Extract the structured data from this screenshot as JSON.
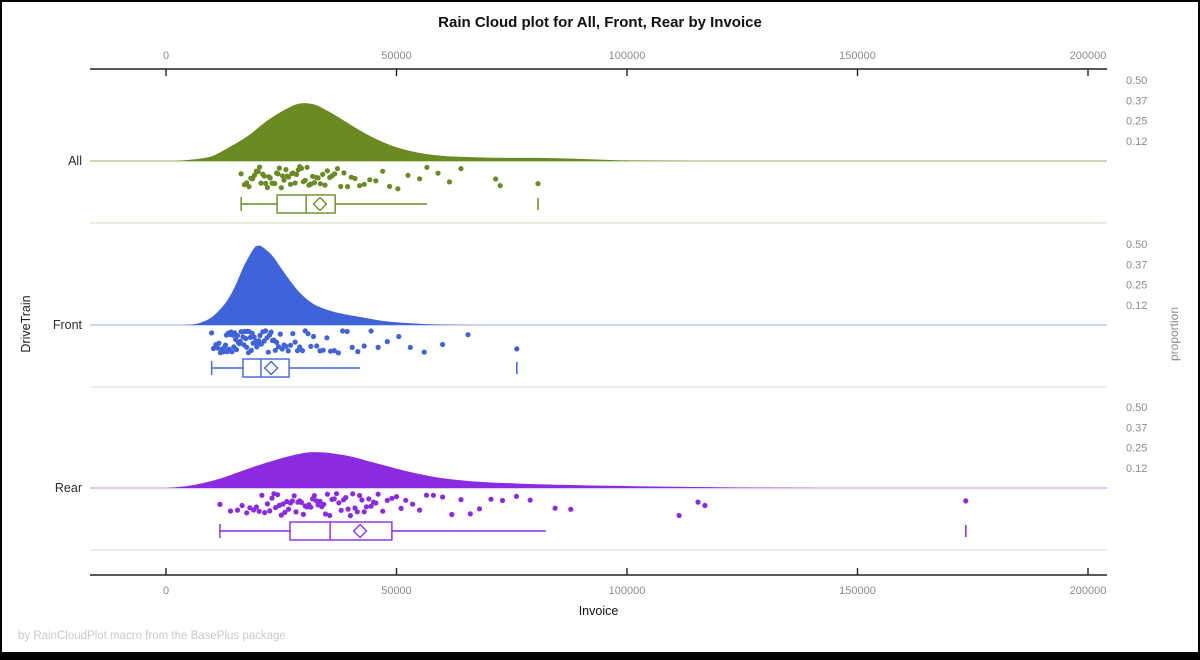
{
  "title": "Rain Cloud plot for All, Front, Rear by Invoice",
  "footer": "by RainCloudPlot macro from the BasePlus package",
  "chart_data": {
    "type": "raincloud",
    "title": "Rain Cloud plot for All, Front, Rear by Invoice",
    "xlabel": "Invoice",
    "ylabel": "DriveTrain",
    "right_axis_label": "proportion",
    "xlim": [
      -16500,
      204000
    ],
    "grid": "off",
    "x_axis": {
      "ticks": [
        {
          "value": 0,
          "label": "0"
        },
        {
          "value": 50000,
          "label": "50000"
        },
        {
          "value": 100000,
          "label": "100000"
        },
        {
          "value": 150000,
          "label": "150000"
        },
        {
          "value": 200000,
          "label": "200000"
        }
      ]
    },
    "right_axis": {
      "tick_labels": [
        "0.50",
        "0.37",
        "0.25",
        "0.12"
      ],
      "tick_values": [
        0.5,
        0.375,
        0.25,
        0.125
      ]
    },
    "groups": [
      {
        "name": "All",
        "color": "#6A8A23",
        "color_light": "#AFC285",
        "color_faint": "#DEE4CB",
        "density": [
          [
            2000,
            0
          ],
          [
            6000,
            0.01
          ],
          [
            10000,
            0.03
          ],
          [
            14000,
            0.09
          ],
          [
            18000,
            0.16
          ],
          [
            22000,
            0.25
          ],
          [
            26000,
            0.32
          ],
          [
            29000,
            0.355
          ],
          [
            32000,
            0.35
          ],
          [
            35000,
            0.31
          ],
          [
            38000,
            0.26
          ],
          [
            42000,
            0.19
          ],
          [
            46000,
            0.13
          ],
          [
            50000,
            0.085
          ],
          [
            55000,
            0.05
          ],
          [
            60000,
            0.032
          ],
          [
            66000,
            0.024
          ],
          [
            72000,
            0.02
          ],
          [
            80000,
            0.019
          ],
          [
            86000,
            0.016
          ],
          [
            92000,
            0.011
          ],
          [
            98000,
            0.005
          ],
          [
            106000,
            0.002
          ],
          [
            114000,
            0
          ]
        ],
        "points": [
          16300,
          17000,
          17500,
          18000,
          18400,
          18800,
          19200,
          19600,
          20000,
          20300,
          20600,
          21000,
          21300,
          21600,
          22000,
          22300,
          22600,
          23000,
          23300,
          23600,
          24000,
          24300,
          24600,
          25000,
          25300,
          25600,
          26000,
          26300,
          26600,
          27000,
          27300,
          27600,
          28000,
          28300,
          28700,
          29000,
          29400,
          29800,
          30200,
          30600,
          31000,
          31400,
          31800,
          32200,
          32600,
          33000,
          33500,
          34000,
          34500,
          35000,
          35500,
          36000,
          36600,
          37200,
          37900,
          38600,
          39400,
          40200,
          41000,
          42000,
          43000,
          44200,
          45500,
          47000,
          48500,
          50300,
          52500,
          55000,
          56600,
          59000,
          61500,
          64000,
          71500,
          72500,
          80700
        ],
        "box": {
          "whisker_low": 16300,
          "q1": 24100,
          "median": 30400,
          "mean": 33400,
          "q3": 36700,
          "whisker_high": 56600,
          "outliers": [
            80700
          ]
        }
      },
      {
        "name": "Front",
        "color": "#3F63D9",
        "color_light": "#AABDEC",
        "color_faint": "#DCE3F7",
        "density": [
          [
            4000,
            0
          ],
          [
            7000,
            0.01
          ],
          [
            10000,
            0.05
          ],
          [
            13000,
            0.14
          ],
          [
            15000,
            0.24
          ],
          [
            17000,
            0.37
          ],
          [
            19000,
            0.47
          ],
          [
            20000,
            0.49
          ],
          [
            21000,
            0.48
          ],
          [
            23000,
            0.43
          ],
          [
            25000,
            0.35
          ],
          [
            27000,
            0.27
          ],
          [
            29000,
            0.2
          ],
          [
            31000,
            0.15
          ],
          [
            33000,
            0.115
          ],
          [
            36000,
            0.085
          ],
          [
            39000,
            0.065
          ],
          [
            42000,
            0.05
          ],
          [
            45000,
            0.035
          ],
          [
            48000,
            0.022
          ],
          [
            52000,
            0.012
          ],
          [
            56000,
            0.006
          ],
          [
            61000,
            0.002
          ],
          [
            66000,
            0
          ]
        ],
        "points": [
          9900,
          10300,
          10800,
          11200,
          11500,
          11800,
          12000,
          12200,
          12500,
          12700,
          12900,
          13100,
          13300,
          13500,
          13700,
          13900,
          14100,
          14300,
          14500,
          14700,
          14900,
          15100,
          15300,
          15500,
          15700,
          15900,
          16100,
          16300,
          16500,
          16700,
          16900,
          17100,
          17300,
          17500,
          17700,
          17900,
          18100,
          18300,
          18500,
          18700,
          18900,
          19100,
          19300,
          19500,
          19700,
          19900,
          20100,
          20400,
          20700,
          21000,
          21300,
          21600,
          21900,
          22200,
          22500,
          22800,
          23100,
          23400,
          23700,
          24000,
          24400,
          24800,
          25200,
          25600,
          26000,
          26500,
          27000,
          27500,
          28000,
          28500,
          29000,
          29600,
          30200,
          30800,
          31400,
          32000,
          32700,
          33400,
          34100,
          34900,
          35700,
          36500,
          37400,
          38300,
          39300,
          40400,
          41600,
          43000,
          44500,
          46000,
          48000,
          50500,
          53000,
          56000,
          60000,
          65500,
          76100
        ],
        "box": {
          "whisker_low": 9900,
          "q1": 16700,
          "median": 20600,
          "mean": 22800,
          "q3": 26700,
          "whisker_high": 42100,
          "outliers": [
            76100
          ]
        }
      },
      {
        "name": "Rear",
        "color": "#8A2BE2",
        "color_light": "#CAA5EF",
        "color_faint": "#EADBF9",
        "density": [
          [
            0,
            0
          ],
          [
            4000,
            0.01
          ],
          [
            8000,
            0.03
          ],
          [
            12000,
            0.06
          ],
          [
            16000,
            0.1
          ],
          [
            20000,
            0.14
          ],
          [
            24000,
            0.175
          ],
          [
            28000,
            0.205
          ],
          [
            31000,
            0.22
          ],
          [
            34000,
            0.22
          ],
          [
            37000,
            0.21
          ],
          [
            40000,
            0.195
          ],
          [
            44000,
            0.165
          ],
          [
            48000,
            0.135
          ],
          [
            52000,
            0.105
          ],
          [
            56000,
            0.08
          ],
          [
            60000,
            0.06
          ],
          [
            65000,
            0.045
          ],
          [
            70000,
            0.035
          ],
          [
            76000,
            0.028
          ],
          [
            82000,
            0.022
          ],
          [
            90000,
            0.017
          ],
          [
            98000,
            0.013
          ],
          [
            106000,
            0.009
          ],
          [
            114000,
            0.006
          ],
          [
            122000,
            0.004
          ],
          [
            130000,
            0.002
          ],
          [
            140000,
            0
          ]
        ],
        "points": [
          11700,
          14000,
          15500,
          16500,
          17500,
          18200,
          19000,
          19600,
          20200,
          20800,
          21400,
          22000,
          22500,
          23000,
          23400,
          23800,
          24200,
          24600,
          25000,
          25400,
          25800,
          26200,
          26600,
          27000,
          27400,
          27800,
          28200,
          28600,
          29000,
          29400,
          29800,
          30200,
          30600,
          31000,
          31400,
          31800,
          32200,
          32600,
          33000,
          33400,
          33800,
          34200,
          34600,
          35000,
          35500,
          36000,
          36500,
          37000,
          37500,
          38000,
          38500,
          39000,
          39500,
          40000,
          40500,
          41000,
          41500,
          42000,
          42500,
          43000,
          43500,
          44000,
          44500,
          45000,
          45500,
          46000,
          47000,
          48000,
          49000,
          50000,
          51000,
          52000,
          53500,
          55000,
          56500,
          58000,
          60000,
          62000,
          64000,
          66000,
          68000,
          70500,
          73000,
          76000,
          79000,
          84400,
          87800,
          111300,
          115400,
          116900,
          173500
        ],
        "box": {
          "whisker_low": 11700,
          "q1": 26900,
          "median": 35600,
          "mean": 42100,
          "q3": 49000,
          "whisker_high": 82400,
          "outliers": [
            173500
          ]
        }
      }
    ]
  }
}
